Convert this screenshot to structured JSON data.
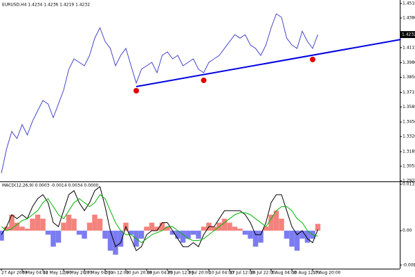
{
  "chart_data": [
    {
      "type": "line",
      "title": "EURUSD,H4 1.4234 1.4236 1.4219 1.4232",
      "categories": [
        "27 Apr 2009",
        null,
        null,
        null,
        "5 May 04:00",
        null,
        null,
        null,
        "12 May 12:00",
        null,
        null,
        null,
        "19 May 20:00",
        null,
        null,
        null,
        "27 May 04:00",
        null,
        null,
        null,
        "3 Jun 12:00",
        null,
        null,
        null,
        "10 Jun 20:00",
        null,
        null,
        null,
        "18 Jun 04:00",
        null,
        null,
        null,
        "25 Jun 12:00",
        null,
        null,
        null,
        "2 Jul 20:00",
        null,
        null,
        null,
        "10 Jul 04:00",
        null,
        null,
        null,
        "17 Jul 12:00",
        null,
        null,
        null,
        "26 Jul 22:00",
        null,
        null,
        null,
        "3 Aug 04:00",
        null,
        null,
        null,
        "10 Aug 12:00",
        null,
        null,
        null,
        "17 Aug 20:00",
        null
      ],
      "series": [
        {
          "color": "#4646c8",
          "values": [
            1.2993,
            1.321,
            1.3365,
            1.3303,
            1.3427,
            1.3334,
            1.3458,
            1.3551,
            1.3643,
            1.3612,
            1.3489,
            1.3612,
            1.3736,
            1.3922,
            1.4015,
            1.3984,
            1.3953,
            1.4046,
            1.42,
            1.4293,
            1.417,
            1.4108,
            1.3953,
            1.4046,
            1.4108,
            1.3953,
            1.3798,
            1.3922,
            1.3953,
            1.3984,
            1.3891,
            1.4046,
            1.4077,
            1.4015,
            1.4046,
            1.3953,
            1.3984,
            1.4015,
            1.3922,
            1.3891,
            1.3984,
            1.4015,
            1.4046,
            1.4108,
            1.417,
            1.4231,
            1.42,
            1.4231,
            1.4139,
            1.4108,
            1.4046,
            1.4139,
            1.4293,
            1.4417,
            1.4386,
            1.42,
            1.4139,
            1.4108,
            1.4262,
            1.417,
            1.4108,
            1.4232
          ]
        }
      ],
      "ylim": [
        1.2919,
        1.4541
      ],
      "yticks": [
        {
          "value": 1.451,
          "label": "1.4510"
        },
        {
          "value": 1.438,
          "label": "1.4380"
        },
        {
          "value": 1.4115,
          "label": "1.4115"
        },
        {
          "value": 1.398,
          "label": "1.3980"
        },
        {
          "value": 1.385,
          "label": "1.3850"
        },
        {
          "value": 1.3715,
          "label": "1.3715"
        },
        {
          "value": 1.3585,
          "label": "1.3585"
        },
        {
          "value": 1.345,
          "label": "1.3450"
        },
        {
          "value": 1.332,
          "label": "1.3320"
        },
        {
          "value": 1.3185,
          "label": "1.3185"
        },
        {
          "value": 1.3055,
          "label": "1.3055"
        },
        {
          "value": 1.2925,
          "label": "1.2925"
        }
      ],
      "last_price": 1.4232,
      "trendline": {
        "color": "#0000e0",
        "x": [
          26,
          77
        ],
        "values": [
          1.3767,
          1.4188
        ]
      },
      "markers": {
        "color": "#e00000",
        "x": [
          26,
          39,
          60
        ],
        "values": [
          1.373,
          1.3823,
          1.4009
        ]
      }
    },
    {
      "type": "macd",
      "title": "MACD(12,26,9) 0.0003 -0.0014 0.0034 0.0000",
      "histogram": {
        "up_color": "#f4837d",
        "down_color": "#7b7bf2",
        "values": [
          -0.0025,
          0.001,
          0.004,
          0.002,
          0.001,
          0.0005,
          0.003,
          0.004,
          0.003,
          -0.001,
          -0.004,
          -0.003,
          0.002,
          0.004,
          0.003,
          -0.001,
          -0.002,
          0.002,
          0.004,
          0.003,
          -0.002,
          -0.005,
          -0.006,
          -0.004,
          0.002,
          -0.001,
          -0.004,
          -0.002,
          0.001,
          0.002,
          0.001,
          0.002,
          0.001,
          -0.001,
          -0.002,
          -0.003,
          -0.002,
          -0.001,
          -0.002,
          0.001,
          0.002,
          0.001,
          0.002,
          0.003,
          0.002,
          0.001,
          0.0005,
          -0.001,
          -0.002,
          -0.004,
          -0.003,
          0.001,
          0.004,
          0.005,
          0.003,
          -0.002,
          -0.004,
          -0.005,
          -0.002,
          -0.003,
          -0.002,
          0.0017
        ]
      },
      "series": [
        {
          "color": "#000000",
          "values": [
            -0.001,
            0.001,
            0.004,
            0.003,
            0.004,
            0.003,
            0.006,
            0.008,
            0.009,
            0.007,
            0.002,
            0.001,
            0.005,
            0.009,
            0.01,
            0.007,
            0.005,
            0.007,
            0.01,
            0.011,
            0.006,
            0,
            -0.004,
            -0.003,
            0.001,
            -0.002,
            -0.005,
            -0.004,
            -0.001,
            0,
            0,
            0.002,
            0.002,
            0,
            -0.002,
            -0.004,
            -0.004,
            -0.003,
            -0.004,
            -0.001,
            0.001,
            0.001,
            0.003,
            0.005,
            0.005,
            0.005,
            0.005,
            0.004,
            0.002,
            -0.001,
            -0.001,
            0.002,
            0.007,
            0.009,
            0.009,
            0.005,
            0.001,
            -0.001,
            0,
            -0.002,
            -0.003,
            0.0003
          ]
        },
        {
          "color": "#00b400",
          "values": [
            0.001,
            0,
            0.0005,
            0.0015,
            0.0025,
            0.003,
            0.004,
            0.005,
            0.007,
            0.008,
            0.006,
            0.004,
            0.003,
            0.005,
            0.007,
            0.008,
            0.007,
            0.006,
            0.007,
            0.009,
            0.008,
            0.005,
            0.002,
            0,
            -0.001,
            -0.001,
            -0.002,
            -0.003,
            -0.002,
            -0.001,
            -0.0005,
            0,
            0.001,
            0.001,
            0,
            -0.001,
            -0.002,
            -0.0025,
            -0.0025,
            -0.002,
            -0.001,
            0,
            0.001,
            0.002,
            0.003,
            0.004,
            0.0045,
            0.0045,
            0.004,
            0.003,
            0.002,
            0.001,
            0.003,
            0.005,
            0.006,
            0.006,
            0.005,
            0.003,
            0.002,
            0,
            -0.001,
            -0.0014
          ]
        }
      ],
      "ylim": [
        -0.0095,
        0.0123
      ],
      "yticks": [
        {
          "value": 0.0116,
          "label": "0.0116"
        },
        {
          "value": 0,
          "label": "0.00"
        },
        {
          "value": -0.0086,
          "label": "-0.0086"
        }
      ]
    }
  ]
}
